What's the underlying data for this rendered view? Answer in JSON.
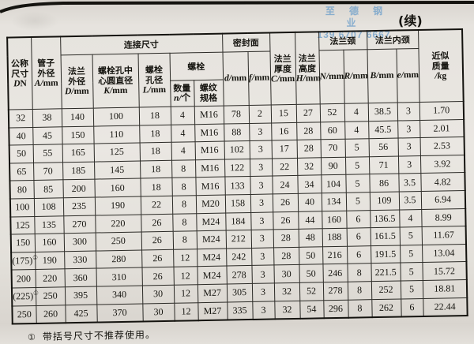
{
  "page": {
    "continued_label": "(续)",
    "watermark": {
      "line1": "至 德 钢 业",
      "line2": "139 6707 6667",
      "color": "#78a4cb"
    },
    "footnote_marker": "①",
    "footnote_text": "带括号尺寸不推荐使用。"
  },
  "table": {
    "groups": {
      "connection": "连接尺寸",
      "sealing": "密封面",
      "bolt": "螺栓",
      "neck": "法兰颈",
      "inner_neck": "法兰内颈"
    },
    "headers": {
      "dn": [
        "公称",
        "尺寸",
        "DN"
      ],
      "pipe_od": [
        "管子",
        "外径",
        "A/mm"
      ],
      "flange_od": [
        "法兰",
        "外径",
        "D/mm"
      ],
      "bolt_circle": [
        "螺栓孔中",
        "心圆直径",
        "K/mm"
      ],
      "bolt_hole": [
        "螺栓",
        "孔径",
        "L/mm"
      ],
      "bolt_qty": [
        "数量",
        "n/个"
      ],
      "bolt_thread": [
        "螺纹",
        "规格"
      ],
      "seal_d": "d/mm",
      "seal_f": "f/mm",
      "thickness": [
        "法兰",
        "厚度",
        "C/mm"
      ],
      "height": [
        "法兰",
        "高度",
        "H/mm"
      ],
      "neck_n": "N/mm",
      "neck_r": "R/mm",
      "inner_b": "B/mm",
      "inner_e": "e/mm",
      "mass": [
        "近似",
        "质量",
        "/kg"
      ]
    },
    "rows": [
      [
        "32",
        "38",
        "140",
        "100",
        "18",
        "4",
        "M16",
        "78",
        "2",
        "15",
        "27",
        "52",
        "4",
        "38.5",
        "3",
        "1.70"
      ],
      [
        "40",
        "45",
        "150",
        "110",
        "18",
        "4",
        "M16",
        "88",
        "3",
        "16",
        "28",
        "60",
        "4",
        "45.5",
        "3",
        "2.01"
      ],
      [
        "50",
        "55",
        "165",
        "125",
        "18",
        "4",
        "M16",
        "102",
        "3",
        "17",
        "28",
        "70",
        "5",
        "56",
        "3",
        "2.53"
      ],
      [
        "65",
        "70",
        "185",
        "145",
        "18",
        "8",
        "M16",
        "122",
        "3",
        "22",
        "32",
        "90",
        "5",
        "71",
        "3",
        "3.92"
      ],
      [
        "80",
        "85",
        "200",
        "160",
        "18",
        "8",
        "M16",
        "133",
        "3",
        "24",
        "34",
        "104",
        "5",
        "86",
        "3.5",
        "4.82"
      ],
      [
        "100",
        "108",
        "235",
        "190",
        "22",
        "8",
        "M20",
        "158",
        "3",
        "26",
        "40",
        "134",
        "5",
        "109",
        "3.5",
        "6.94"
      ],
      [
        "125",
        "135",
        "270",
        "220",
        "26",
        "8",
        "M24",
        "184",
        "3",
        "26",
        "44",
        "160",
        "6",
        "136.5",
        "4",
        "8.99"
      ],
      [
        "150",
        "160",
        "300",
        "250",
        "26",
        "8",
        "M24",
        "212",
        "3",
        "28",
        "48",
        "188",
        "6",
        "161.5",
        "5",
        "11.67"
      ],
      [
        "(175)①",
        "190",
        "330",
        "280",
        "26",
        "12",
        "M24",
        "242",
        "3",
        "28",
        "50",
        "216",
        "6",
        "191.5",
        "5",
        "13.04"
      ],
      [
        "200",
        "220",
        "360",
        "310",
        "26",
        "12",
        "M24",
        "278",
        "3",
        "30",
        "50",
        "246",
        "8",
        "221.5",
        "5",
        "15.72"
      ],
      [
        "(225)①",
        "250",
        "395",
        "340",
        "30",
        "12",
        "M27",
        "305",
        "3",
        "32",
        "52",
        "278",
        "8",
        "252",
        "5",
        "18.81"
      ],
      [
        "250",
        "260",
        "425",
        "370",
        "30",
        "12",
        "M27",
        "335",
        "3",
        "32",
        "54",
        "296",
        "8",
        "262",
        "6",
        "22.44"
      ]
    ]
  }
}
